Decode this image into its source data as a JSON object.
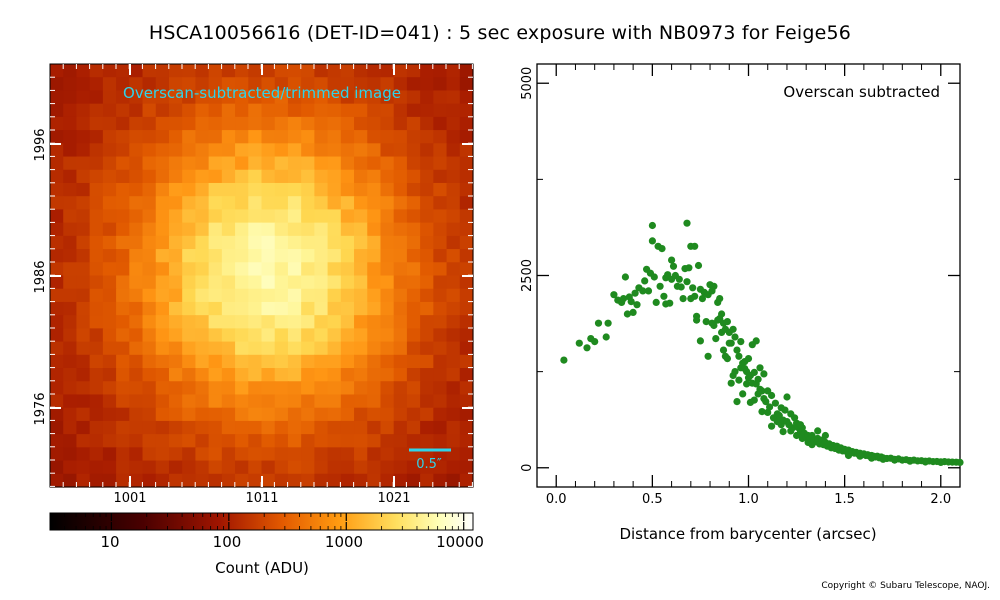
{
  "title": "HSCA10056616 (DET-ID=041) :  5 sec exposure with NB0973 for Feige56",
  "copyright": "Copyright © Subaru Telescope, NAOJ.",
  "chart_data": [
    {
      "type": "heatmap",
      "annotation": "Overscan-subtracted/trimmed image",
      "scalebar_label": "0.5″",
      "x_ticks": [
        "1001",
        "1011",
        "1021"
      ],
      "y_ticks": [
        "1976",
        "1986",
        "1996"
      ],
      "colors": {
        "annotation": "#2fd3e8",
        "scalebar": "#2fd3e8",
        "tick": "#ffffff"
      }
    },
    {
      "type": "colorbar",
      "scale": "log",
      "range": [
        3,
        12000
      ],
      "tick_labels": [
        "10",
        "100",
        "1000",
        "10000"
      ],
      "xlabel": "Count (ADU)"
    },
    {
      "type": "scatter",
      "annotation": "Overscan subtracted",
      "xlabel": "Distance from barycenter (arcsec)",
      "ylabel": "",
      "xlim": [
        -0.1,
        2.1
      ],
      "ylim": [
        -250,
        5250
      ],
      "x_ticks": [
        "0.0",
        "0.5",
        "1.0",
        "1.5",
        "2.0"
      ],
      "y_ticks": [
        "0",
        "2500",
        "5000"
      ],
      "color": "#1f8a1f",
      "points": [
        [
          0.04,
          1400
        ],
        [
          0.12,
          1620
        ],
        [
          0.16,
          1560
        ],
        [
          0.18,
          1680
        ],
        [
          0.2,
          1640
        ],
        [
          0.22,
          1880
        ],
        [
          0.26,
          1700
        ],
        [
          0.27,
          1880
        ],
        [
          0.3,
          2250
        ],
        [
          0.32,
          2180
        ],
        [
          0.34,
          2150
        ],
        [
          0.35,
          2200
        ],
        [
          0.36,
          2480
        ],
        [
          0.37,
          2000
        ],
        [
          0.38,
          2220
        ],
        [
          0.39,
          2160
        ],
        [
          0.4,
          2020
        ],
        [
          0.41,
          2270
        ],
        [
          0.42,
          2120
        ],
        [
          0.43,
          2340
        ],
        [
          0.45,
          2300
        ],
        [
          0.46,
          2430
        ],
        [
          0.47,
          2580
        ],
        [
          0.48,
          2300
        ],
        [
          0.49,
          2530
        ],
        [
          0.5,
          2950
        ],
        [
          0.5,
          3150
        ],
        [
          0.51,
          2480
        ],
        [
          0.52,
          2150
        ],
        [
          0.53,
          2880
        ],
        [
          0.54,
          2360
        ],
        [
          0.55,
          2850
        ],
        [
          0.56,
          2230
        ],
        [
          0.57,
          2130
        ],
        [
          0.57,
          2470
        ],
        [
          0.58,
          2510
        ],
        [
          0.59,
          2140
        ],
        [
          0.6,
          2450
        ],
        [
          0.6,
          2700
        ],
        [
          0.61,
          2620
        ],
        [
          0.62,
          2500
        ],
        [
          0.63,
          2360
        ],
        [
          0.64,
          2450
        ],
        [
          0.65,
          2350
        ],
        [
          0.66,
          2200
        ],
        [
          0.67,
          2590
        ],
        [
          0.68,
          2420
        ],
        [
          0.68,
          3180
        ],
        [
          0.69,
          2600
        ],
        [
          0.7,
          2880
        ],
        [
          0.7,
          2200
        ],
        [
          0.71,
          2340
        ],
        [
          0.72,
          2880
        ],
        [
          0.72,
          2230
        ],
        [
          0.73,
          1970
        ],
        [
          0.73,
          1920
        ],
        [
          0.74,
          2630
        ],
        [
          0.75,
          2320
        ],
        [
          0.75,
          1650
        ],
        [
          0.76,
          2200
        ],
        [
          0.77,
          2280
        ],
        [
          0.78,
          1900
        ],
        [
          0.79,
          2250
        ],
        [
          0.79,
          1450
        ],
        [
          0.8,
          2380
        ],
        [
          0.81,
          2300
        ],
        [
          0.81,
          1880
        ],
        [
          0.82,
          1850
        ],
        [
          0.82,
          2360
        ],
        [
          0.83,
          1680
        ],
        [
          0.84,
          2150
        ],
        [
          0.84,
          1920
        ],
        [
          0.85,
          2200
        ],
        [
          0.85,
          1940
        ],
        [
          0.86,
          1760
        ],
        [
          0.86,
          2000
        ],
        [
          0.87,
          1880
        ],
        [
          0.87,
          1530
        ],
        [
          0.88,
          1800
        ],
        [
          0.88,
          1450
        ],
        [
          0.89,
          1900
        ],
        [
          0.89,
          1420
        ],
        [
          0.9,
          1620
        ],
        [
          0.9,
          1760
        ],
        [
          0.91,
          1620
        ],
        [
          0.91,
          1100
        ],
        [
          0.92,
          1800
        ],
        [
          0.92,
          1200
        ],
        [
          0.93,
          1700
        ],
        [
          0.93,
          1250
        ],
        [
          0.94,
          1530
        ],
        [
          0.94,
          860
        ],
        [
          0.95,
          1450
        ],
        [
          0.95,
          1140
        ],
        [
          0.96,
          1640
        ],
        [
          0.96,
          1300
        ],
        [
          0.97,
          1360
        ],
        [
          0.97,
          960
        ],
        [
          0.98,
          1290
        ],
        [
          0.98,
          1380
        ],
        [
          0.99,
          1250
        ],
        [
          0.99,
          1090
        ],
        [
          1.0,
          1420
        ],
        [
          1.0,
          1170
        ],
        [
          1.01,
          1200
        ],
        [
          1.01,
          850
        ],
        [
          1.02,
          1600
        ],
        [
          1.02,
          1100
        ],
        [
          1.03,
          1240
        ],
        [
          1.03,
          880
        ],
        [
          1.04,
          1090
        ],
        [
          1.04,
          1650
        ],
        [
          1.05,
          1150
        ],
        [
          1.05,
          960
        ],
        [
          1.06,
          1300
        ],
        [
          1.06,
          1020
        ],
        [
          1.07,
          1000
        ],
        [
          1.07,
          730
        ],
        [
          1.08,
          900
        ],
        [
          1.08,
          1220
        ],
        [
          1.09,
          860
        ],
        [
          1.1,
          1000
        ],
        [
          1.1,
          720
        ],
        [
          1.11,
          790
        ],
        [
          1.12,
          940
        ],
        [
          1.12,
          540
        ],
        [
          1.13,
          650
        ],
        [
          1.14,
          840
        ],
        [
          1.15,
          700
        ],
        [
          1.15,
          600
        ],
        [
          1.16,
          680
        ],
        [
          1.17,
          560
        ],
        [
          1.17,
          780
        ],
        [
          1.18,
          620
        ],
        [
          1.18,
          470
        ],
        [
          1.19,
          750
        ],
        [
          1.2,
          600
        ],
        [
          1.2,
          920
        ],
        [
          1.21,
          560
        ],
        [
          1.22,
          700
        ],
        [
          1.22,
          480
        ],
        [
          1.23,
          520
        ],
        [
          1.24,
          650
        ],
        [
          1.25,
          580
        ],
        [
          1.25,
          420
        ],
        [
          1.26,
          520
        ],
        [
          1.27,
          460
        ],
        [
          1.28,
          520
        ],
        [
          1.28,
          380
        ],
        [
          1.29,
          450
        ],
        [
          1.3,
          400
        ],
        [
          1.31,
          420
        ],
        [
          1.31,
          330
        ],
        [
          1.32,
          380
        ],
        [
          1.33,
          420
        ],
        [
          1.34,
          350
        ],
        [
          1.35,
          340
        ],
        [
          1.36,
          380
        ],
        [
          1.36,
          480
        ],
        [
          1.37,
          310
        ],
        [
          1.38,
          360
        ],
        [
          1.39,
          300
        ],
        [
          1.4,
          330
        ],
        [
          1.4,
          420
        ],
        [
          1.41,
          280
        ],
        [
          1.42,
          310
        ],
        [
          1.43,
          260
        ],
        [
          1.44,
          290
        ],
        [
          1.45,
          250
        ],
        [
          1.46,
          280
        ],
        [
          1.47,
          230
        ],
        [
          1.48,
          260
        ],
        [
          1.49,
          220
        ],
        [
          1.5,
          240
        ],
        [
          1.51,
          210
        ],
        [
          1.52,
          230
        ],
        [
          1.53,
          200
        ],
        [
          1.54,
          210
        ],
        [
          1.55,
          190
        ],
        [
          1.56,
          200
        ],
        [
          1.57,
          180
        ],
        [
          1.58,
          190
        ],
        [
          1.59,
          170
        ],
        [
          1.6,
          180
        ],
        [
          1.61,
          160
        ],
        [
          1.62,
          170
        ],
        [
          1.63,
          150
        ],
        [
          1.64,
          160
        ],
        [
          1.65,
          150
        ],
        [
          1.66,
          140
        ],
        [
          1.67,
          150
        ],
        [
          1.68,
          130
        ],
        [
          1.69,
          140
        ],
        [
          1.7,
          130
        ],
        [
          1.72,
          120
        ],
        [
          1.74,
          125
        ],
        [
          1.76,
          110
        ],
        [
          1.78,
          115
        ],
        [
          1.8,
          100
        ],
        [
          1.82,
          105
        ],
        [
          1.84,
          95
        ],
        [
          1.86,
          100
        ],
        [
          1.88,
          90
        ],
        [
          1.9,
          92
        ],
        [
          1.92,
          85
        ],
        [
          1.94,
          88
        ],
        [
          1.96,
          80
        ],
        [
          1.98,
          82
        ],
        [
          2.0,
          78
        ],
        [
          2.02,
          80
        ],
        [
          2.04,
          75
        ],
        [
          2.06,
          74
        ],
        [
          2.08,
          72
        ],
        [
          2.1,
          70
        ],
        [
          1.52,
          160
        ],
        [
          1.58,
          150
        ],
        [
          1.64,
          125
        ],
        [
          1.7,
          110
        ],
        [
          1.76,
          100
        ],
        [
          1.84,
          85
        ],
        [
          1.92,
          75
        ],
        [
          2.0,
          70
        ],
        [
          1.33,
          300
        ],
        [
          1.27,
          560
        ]
      ]
    }
  ]
}
